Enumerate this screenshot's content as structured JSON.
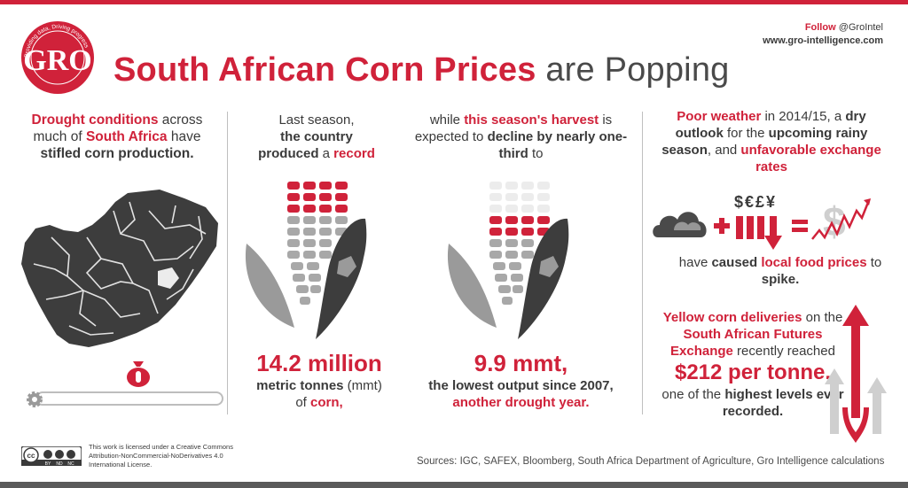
{
  "colors": {
    "accent": "#d0223a",
    "dark": "#3a3a3a",
    "grey": "#8a8a8a",
    "light": "#cfcfcf"
  },
  "logo": {
    "letters": "GRO",
    "ring_text": "Providing data, Driving progress",
    "icon": "gro-logo-icon"
  },
  "title": {
    "part1": "South African Corn Prices",
    "part2": "are Popping"
  },
  "follow": {
    "label": "Follow",
    "handle": "@GroIntel",
    "website": "www.gro-intelligence.com"
  },
  "col1": {
    "t1": "Drought conditions",
    "t2": " across much of ",
    "t3": "South Africa",
    "t4": " have ",
    "t5": "stifled corn production.",
    "icons": [
      "south-africa-map-icon",
      "money-bag-icon",
      "gear-icon"
    ]
  },
  "col2": {
    "t1": "Last season,",
    "t2": "the country",
    "t3": "produced",
    "t4": " a ",
    "t5": "record",
    "big": "14.2 million",
    "s1": "metric tonnes",
    "s2": " (mmt)",
    "s3": "of ",
    "s4": "corn,",
    "icon": "corn-cob-icon"
  },
  "col3": {
    "t1": "while ",
    "t2": "this season's harvest",
    "t3": " is expected to ",
    "t4": "decline by nearly one-third",
    "t5": " to",
    "big": "9.9 mmt,",
    "s1": "the lowest output since 2007,",
    "s2": "another drought year.",
    "icon": "corn-cob-icon"
  },
  "col4": {
    "t1": "Poor weather",
    "t2": " in 2014/15, a ",
    "t3": "dry outlook",
    "t4": " for the ",
    "t5": "upcoming rainy season",
    "t6": ", and ",
    "t7": "unfavorable exchange rates",
    "currency": "$€£¥",
    "m1": "have ",
    "m2": "caused",
    "m3": " ",
    "m4": "local food prices",
    "m5": " to ",
    "m6": "spike.",
    "l1": "Yellow corn deliveries",
    "l2": " on the ",
    "l3": "South African Futures Exchange",
    "l4": " recently reached",
    "price": "$212 per tonne,",
    "l5": "one of the ",
    "l6": "highest levels ever recorded.",
    "icons": [
      "cloud-icon",
      "plus-icon",
      "bar-down-icon",
      "equals-icon",
      "dollar-spike-icon",
      "up-arrows-icon"
    ]
  },
  "license": {
    "badge": "cc-by-nd-nc-icon",
    "badge_labels": [
      "BY",
      "ND",
      "NC"
    ],
    "text": "This work is licensed under a Creative Commons Attribution-NonCommercial-NoDerivatives 4.0 International License."
  },
  "sources": "Sources: IGC, SAFEX, Bloomberg, South Africa Department of Agriculture, Gro Intelligence calculations"
}
